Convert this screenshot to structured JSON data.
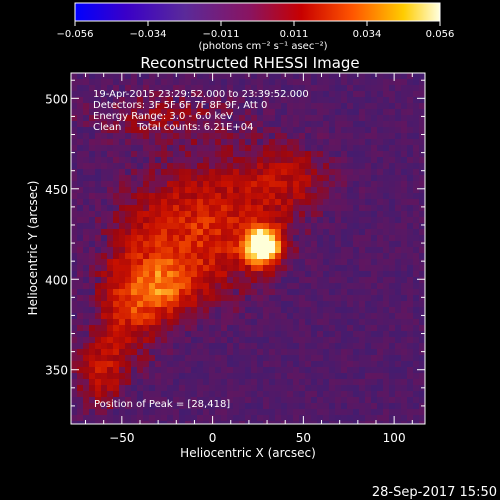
{
  "chart_data": {
    "type": "heatmap",
    "title": "Reconstructed RHESSI Image",
    "xlabel": "Heliocentric X (arcsec)",
    "ylabel": "Heliocentric Y (arcsec)",
    "xlim": [
      -78,
      117
    ],
    "ylim": [
      320,
      514
    ],
    "xticks": [
      -50,
      0,
      50,
      100
    ],
    "yticks": [
      350,
      400,
      450,
      500
    ],
    "colorbar": {
      "label": "(photons cm⁻² s⁻¹ asec⁻²)",
      "range": [
        -0.056,
        0.056
      ],
      "ticks": [
        "−0.056",
        "−0.034",
        "−0.011",
        "0.011",
        "0.034",
        "0.056"
      ],
      "colormap": [
        "#0000ff",
        "#3a00c8",
        "#5a2a9a",
        "#8a1460",
        "#c80000",
        "#ff5500",
        "#ffcc00",
        "#ffffe0"
      ]
    },
    "annotations": [
      "19-Apr-2015 23:29:52.000 to 23:39:52.000",
      "Detectors: 3F 5F 6F 7F 8F 9F, Att 0",
      "Energy Range: 3.0 - 6.0 keV",
      "Clean     Total counts: 6.21E+04"
    ],
    "peak_label": "Position of Peak = [28,418]",
    "peak": [
      28,
      418
    ],
    "background_color": "#3f1d72"
  },
  "footer": {
    "timestamp": "28-Sep-2017 15:50"
  }
}
